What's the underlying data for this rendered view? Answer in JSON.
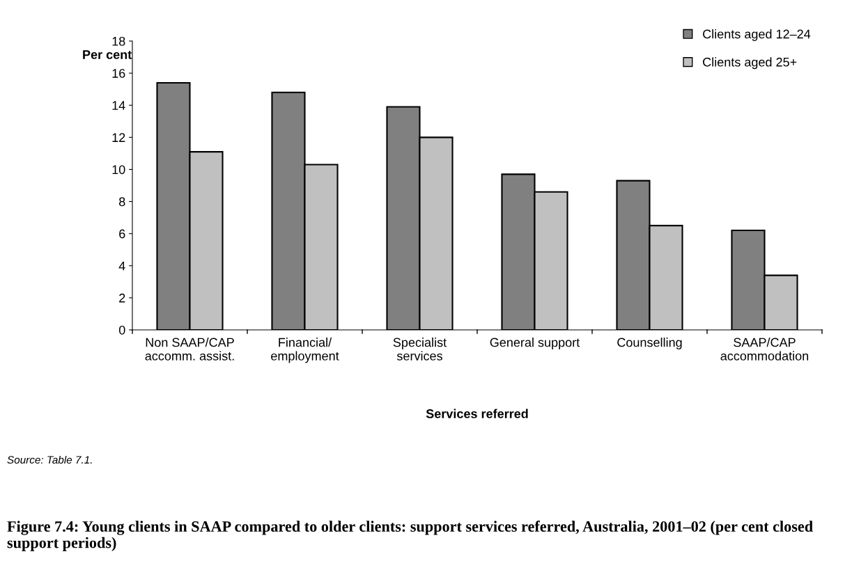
{
  "chart_data": {
    "type": "bar",
    "title": "Figure 7.4: Young clients in SAAP compared to older clients: support services referred, Australia, 2001–02 (per cent closed support periods)",
    "xlabel": "Services referred",
    "ylabel": "Per cent",
    "categories": [
      "Non SAAP/CAP\naccomm. assist.",
      "Financial/\nemployment",
      "Specialist\nservices",
      "General support",
      "Counselling",
      "SAAP/CAP\naccommodation"
    ],
    "series": [
      {
        "name": "Clients aged 12–24",
        "color": "#808080",
        "values": [
          15.4,
          14.8,
          13.9,
          9.7,
          9.3,
          6.2
        ]
      },
      {
        "name": "Clients aged 25+",
        "color": "#c0c0c0",
        "values": [
          11.1,
          10.3,
          12.0,
          8.6,
          6.5,
          3.4
        ]
      }
    ],
    "ylim": [
      0,
      18
    ],
    "yticks": [
      0,
      2,
      4,
      6,
      8,
      10,
      12,
      14,
      16,
      18
    ],
    "grid": false,
    "legend": "top right",
    "annotations": [
      "Source: Table 7.1."
    ]
  }
}
